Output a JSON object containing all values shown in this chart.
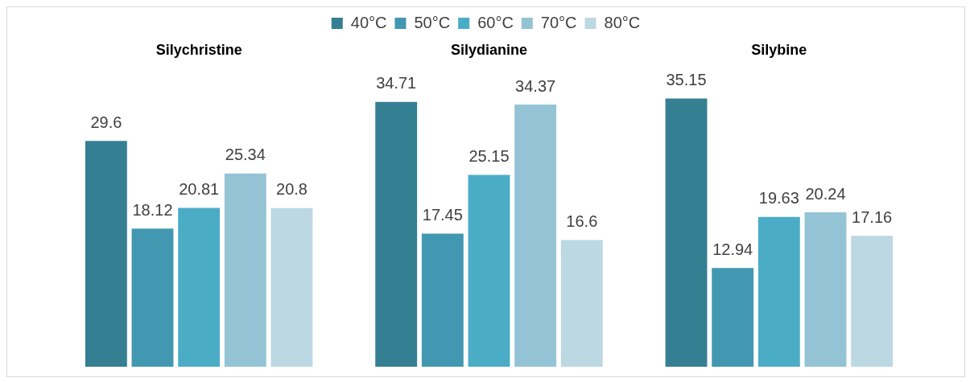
{
  "chart_data": {
    "type": "bar",
    "categories": [
      "Silychristine",
      "Silydianine",
      "Silybine"
    ],
    "series": [
      {
        "name": "40°C",
        "color": "#357f93",
        "values": [
          29.6,
          34.71,
          35.15
        ]
      },
      {
        "name": "50°C",
        "color": "#4298b0",
        "values": [
          18.12,
          17.45,
          12.94
        ]
      },
      {
        "name": "60°C",
        "color": "#4bacc6",
        "values": [
          20.81,
          25.15,
          19.63
        ]
      },
      {
        "name": "70°C",
        "color": "#93c3d4",
        "values": [
          25.34,
          34.37,
          20.24
        ]
      },
      {
        "name": "80°C",
        "color": "#bcd8e3",
        "values": [
          20.8,
          16.6,
          17.16
        ]
      }
    ],
    "data_labels": true,
    "legend": "top",
    "grid": false
  }
}
